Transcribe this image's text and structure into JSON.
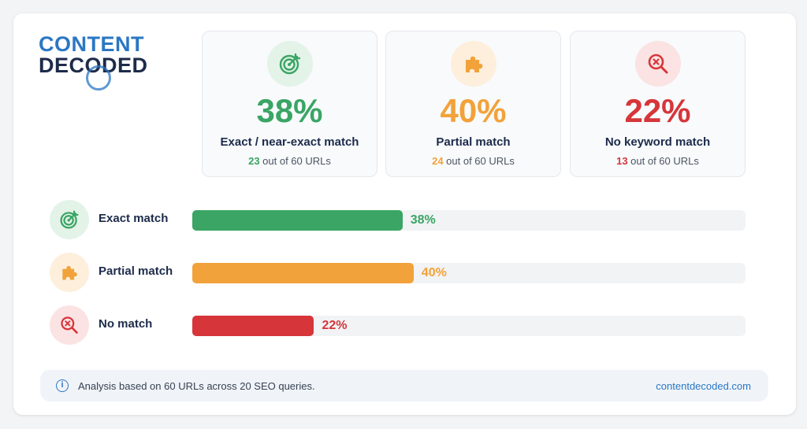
{
  "brand": {
    "line1": "CONTENT",
    "line2": "DECODED"
  },
  "colors": {
    "exact": "#3aa564",
    "partial": "#f2a23a",
    "none": "#d6363a",
    "brand": "#2b77c4",
    "navy": "#1d2b4a"
  },
  "stats": [
    {
      "pct": "38%",
      "label": "Exact / near-exact match",
      "count": "23",
      "suffix": " out of 60 URLs",
      "icon": "target-icon"
    },
    {
      "pct": "40%",
      "label": "Partial match",
      "count": "24",
      "suffix": " out of 60 URLs",
      "icon": "puzzle-piece-icon"
    },
    {
      "pct": "22%",
      "label": "No keyword match",
      "count": "13",
      "suffix": " out of 60 URLs",
      "icon": "magnifier-x-icon"
    }
  ],
  "chart_data": {
    "type": "bar",
    "orientation": "horizontal",
    "categories": [
      "Exact match",
      "Partial match",
      "No match"
    ],
    "values": [
      38,
      40,
      22
    ],
    "value_labels": [
      "38%",
      "40%",
      "22%"
    ],
    "xlim": [
      0,
      100
    ]
  },
  "footer": {
    "note": "Analysis based on 60 URLs across 20 SEO queries.",
    "site": "contentdecoded.com",
    "info_glyph": "i"
  }
}
